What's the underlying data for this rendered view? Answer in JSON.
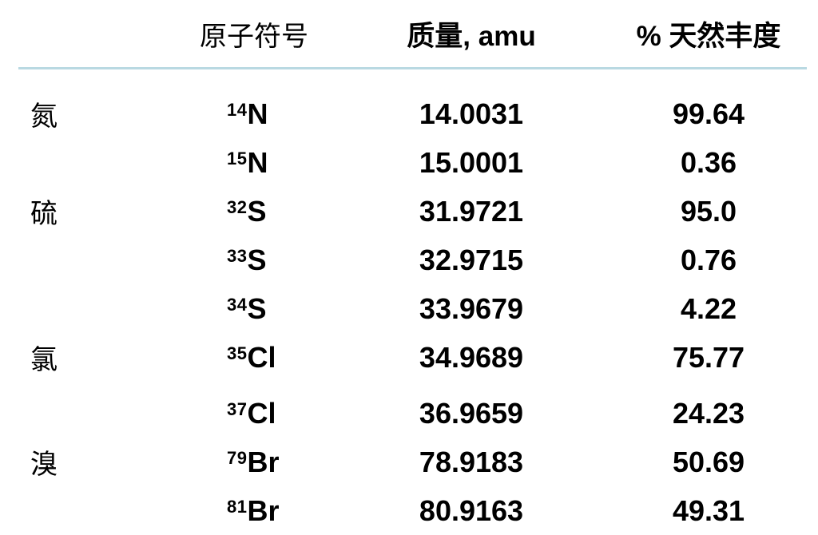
{
  "page": {
    "background_color": "#ffffff",
    "text_color": "#000000"
  },
  "table": {
    "divider_color": "#b9d9e2",
    "headers": {
      "element": "",
      "symbol": "原子符号",
      "mass": "质量, amu",
      "abundance": "% 天然丰度"
    },
    "rows": [
      {
        "element": "氮",
        "sup": "14",
        "symbol": "N",
        "mass": "14.0031",
        "abundance": "99.64"
      },
      {
        "element": "",
        "sup": "15",
        "symbol": "N",
        "mass": "15.0001",
        "abundance": "0.36"
      },
      {
        "element": "硫",
        "sup": "32",
        "symbol": "S",
        "mass": "31.9721",
        "abundance": "95.0"
      },
      {
        "element": "",
        "sup": "33",
        "symbol": "S",
        "mass": "32.9715",
        "abundance": "0.76"
      },
      {
        "element": "",
        "sup": "34",
        "symbol": "S",
        "mass": "33.9679",
        "abundance": "4.22"
      },
      {
        "element": "氯",
        "sup": "35",
        "symbol": "Cl",
        "mass": "34.9689",
        "abundance": "75.77"
      },
      {
        "element": "",
        "sup": "37",
        "symbol": "Cl",
        "mass": "36.9659",
        "abundance": "24.23"
      },
      {
        "element": "溴",
        "sup": "79",
        "symbol": "Br",
        "mass": "78.9183",
        "abundance": "50.69"
      },
      {
        "element": "",
        "sup": "81",
        "symbol": "Br",
        "mass": "80.9163",
        "abundance": "49.31"
      }
    ]
  }
}
